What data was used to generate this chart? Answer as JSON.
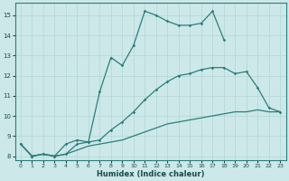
{
  "xlabel": "Humidex (Indice chaleur)",
  "bg_color": "#cce8e8",
  "grid_color": "#b8d8d8",
  "line_color": "#2d7d7d",
  "xlim": [
    -0.5,
    23.5
  ],
  "ylim": [
    7.8,
    15.6
  ],
  "yticks": [
    8,
    9,
    10,
    11,
    12,
    13,
    14,
    15
  ],
  "xticks": [
    0,
    1,
    2,
    3,
    4,
    5,
    6,
    7,
    8,
    9,
    10,
    11,
    12,
    13,
    14,
    15,
    16,
    17,
    18,
    19,
    20,
    21,
    22,
    23
  ],
  "series1_x": [
    0,
    1,
    2,
    3,
    4,
    5,
    6,
    7,
    8,
    9,
    10,
    11,
    12,
    13,
    14,
    15,
    16,
    17,
    18,
    19,
    20,
    21,
    22,
    23
  ],
  "series1_y": [
    8.6,
    8.0,
    8.1,
    8.0,
    8.1,
    8.3,
    8.5,
    8.6,
    8.7,
    8.8,
    9.0,
    9.2,
    9.4,
    9.6,
    9.7,
    9.8,
    9.9,
    10.0,
    10.1,
    10.2,
    10.2,
    10.3,
    10.2,
    10.2
  ],
  "series2_x": [
    0,
    1,
    2,
    3,
    4,
    5,
    6,
    7,
    8,
    9,
    10,
    11,
    12,
    13,
    14,
    15,
    16,
    17,
    18,
    19,
    20,
    21,
    22,
    23
  ],
  "series2_y": [
    8.6,
    8.0,
    8.1,
    8.0,
    8.1,
    8.6,
    8.7,
    8.8,
    9.3,
    9.7,
    10.2,
    10.8,
    11.3,
    11.7,
    12.0,
    12.1,
    12.3,
    12.4,
    12.4,
    12.1,
    12.2,
    11.4,
    10.4,
    10.2
  ],
  "series3_x": [
    0,
    1,
    2,
    3,
    4,
    5,
    6,
    7,
    8,
    9,
    10,
    11,
    12,
    13,
    14,
    15,
    16,
    17,
    18
  ],
  "series3_y": [
    8.6,
    8.0,
    8.1,
    8.0,
    8.6,
    8.8,
    8.7,
    11.2,
    12.9,
    12.5,
    13.5,
    15.2,
    15.0,
    14.7,
    14.5,
    14.5,
    14.6,
    15.2,
    13.8
  ]
}
